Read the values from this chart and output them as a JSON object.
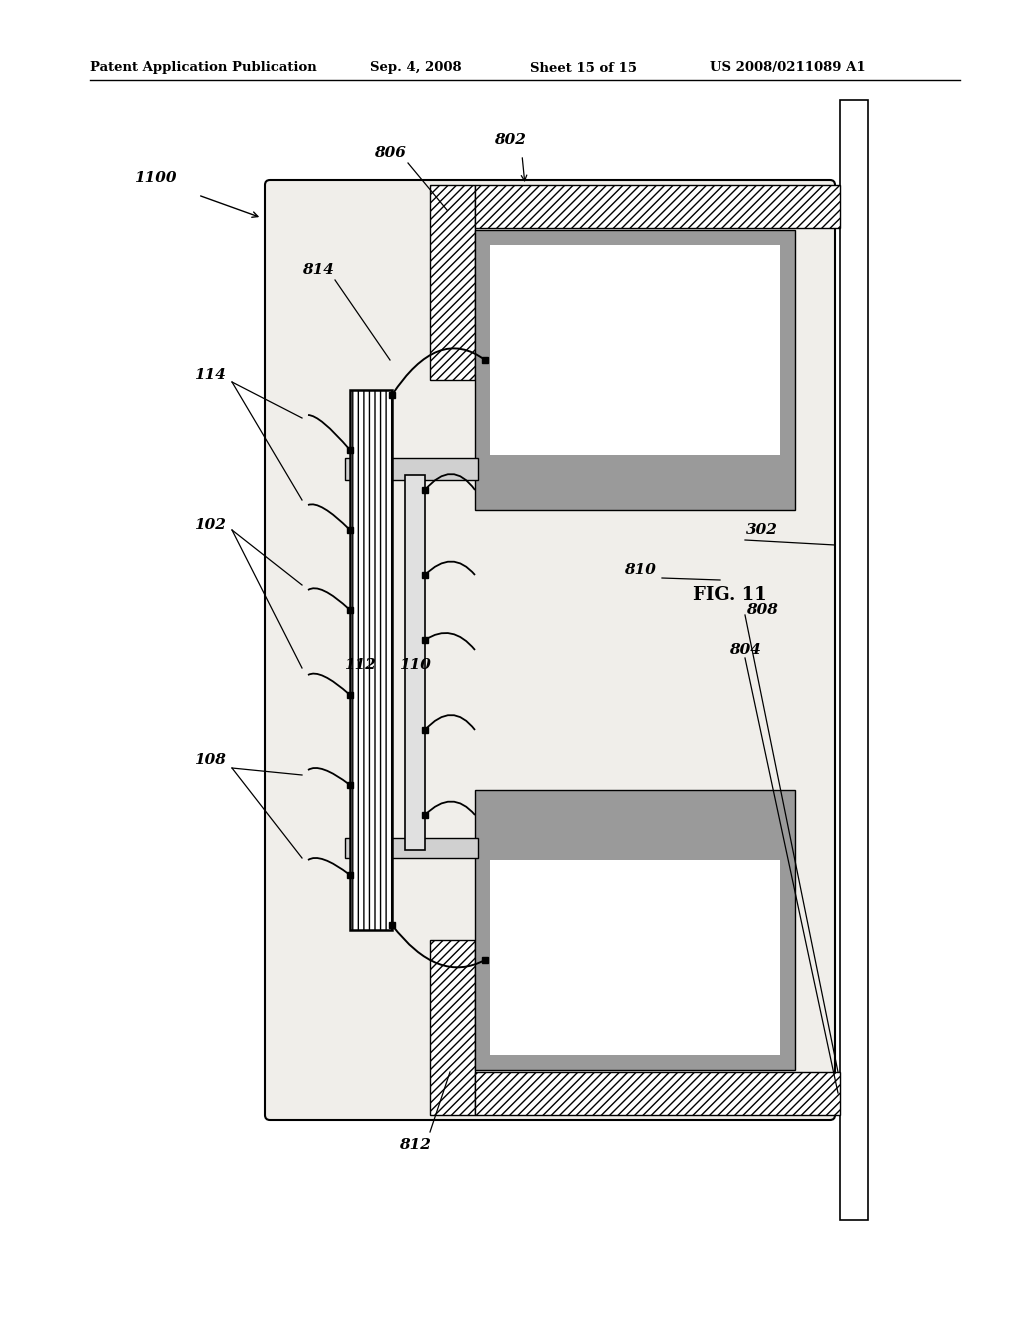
{
  "bg_color": "#ffffff",
  "header_text": "Patent Application Publication",
  "header_date": "Sep. 4, 2008",
  "header_sheet": "Sheet 15 of 15",
  "header_patent": "US 2008/0211089 A1",
  "fig_label": "FIG. 11",
  "gray_pad": "#aaaaaa",
  "dark_gray_pad": "#999999",
  "hatch_lead": "///",
  "line_color": "#000000",
  "bg_color_inner": "#f0eeea"
}
